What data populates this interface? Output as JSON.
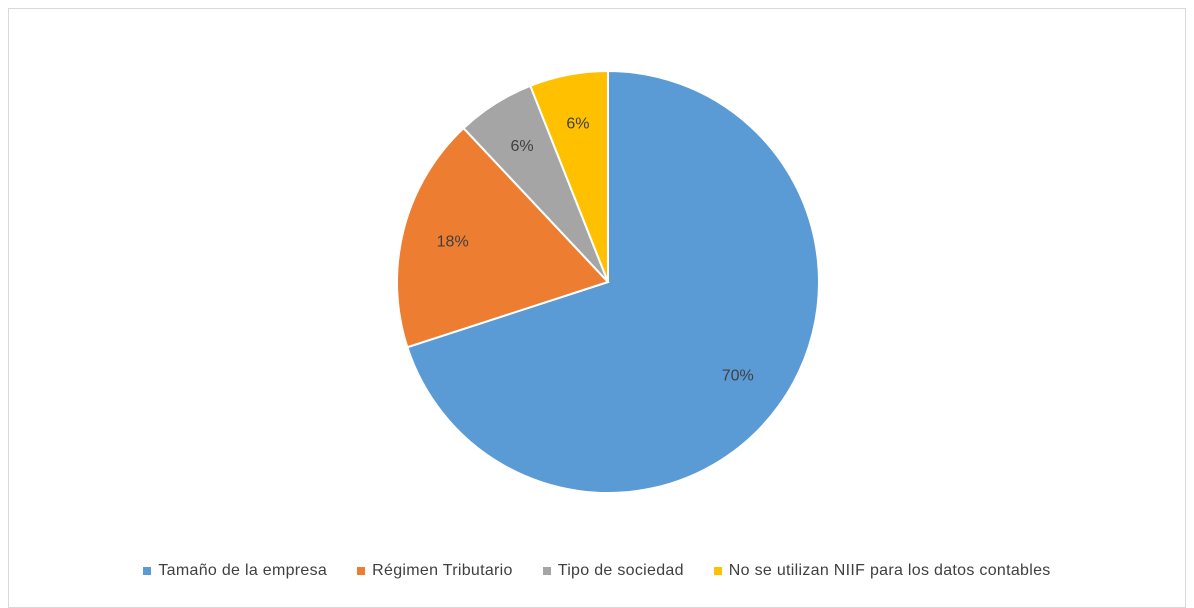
{
  "chart_data": {
    "type": "pie",
    "title": "",
    "categories": [
      "Tamaño de la empresa",
      "Régimen Tributario",
      "Tipo de sociedad",
      "No se utilizan NIIF para los datos contables"
    ],
    "values": [
      70,
      18,
      6,
      6
    ],
    "data_labels": [
      "70%",
      "18%",
      "6%",
      "6%"
    ],
    "colors": [
      "#5B9BD5",
      "#ED7D31",
      "#A5A5A5",
      "#FFC000"
    ],
    "legend_position": "bottom"
  }
}
